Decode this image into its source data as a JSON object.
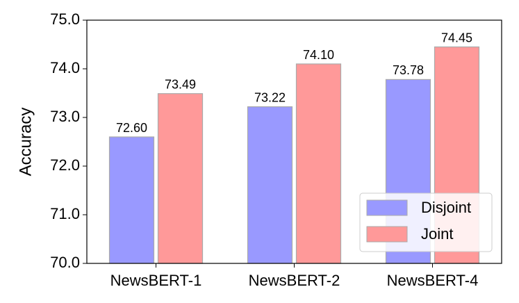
{
  "chart_data": {
    "type": "bar",
    "categories": [
      "NewsBERT-1",
      "NewsBERT-2",
      "NewsBERT-4"
    ],
    "series": [
      {
        "name": "Disjoint",
        "color": "#9999ff",
        "values": [
          72.6,
          73.22,
          73.78
        ],
        "value_labels": [
          "72.60",
          "73.22",
          "73.78"
        ]
      },
      {
        "name": "Joint",
        "color": "#ff9999",
        "values": [
          73.49,
          74.1,
          74.45
        ],
        "value_labels": [
          "73.49",
          "74.10",
          "74.45"
        ]
      }
    ],
    "y_label": "Accuracy",
    "ylim": [
      70,
      75
    ],
    "yticks": [
      {
        "value": 70,
        "label": "70.0"
      },
      {
        "value": 71,
        "label": "71.0"
      },
      {
        "value": 72,
        "label": "72.0"
      },
      {
        "value": 73,
        "label": "73.0"
      },
      {
        "value": 74,
        "label": "74.0"
      },
      {
        "value": 75,
        "label": "75.0"
      }
    ],
    "legend": "lower right"
  }
}
